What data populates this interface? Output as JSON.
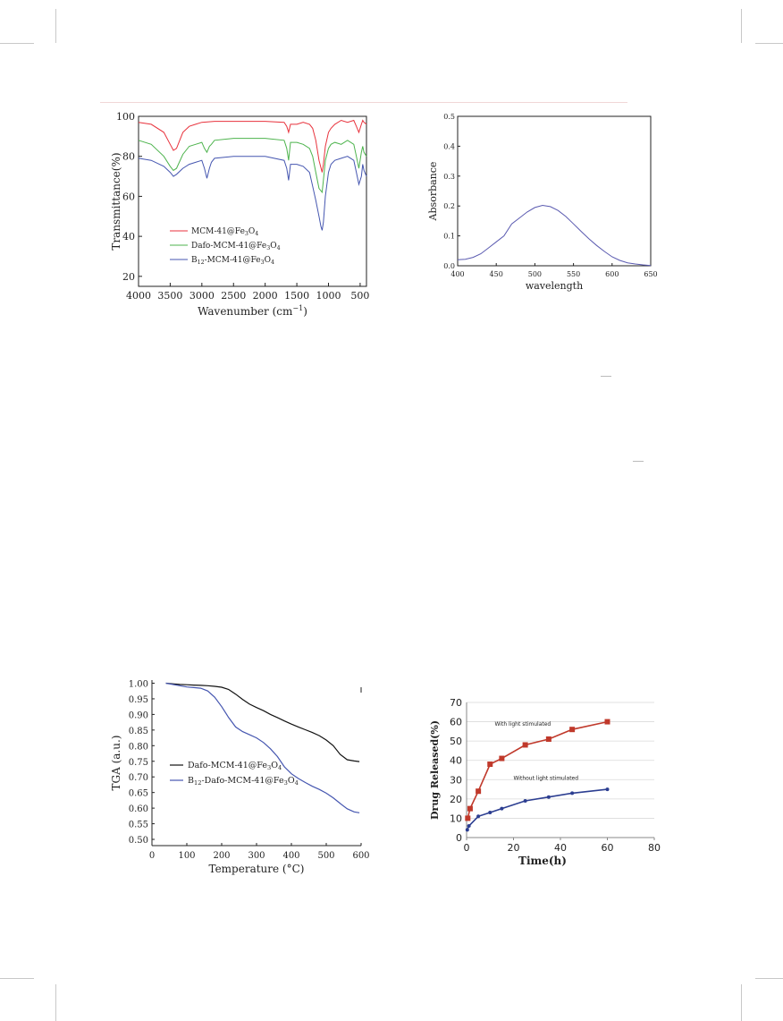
{
  "chart_data": [
    {
      "type": "line",
      "ylabel": "Transmittance(%)",
      "xlabel": "Wavenumber (cm",
      "xlabel_unit_sup": "−1",
      "xlim": [
        4000,
        400
      ],
      "ylim": [
        15,
        100
      ],
      "xticks": [
        4000,
        3500,
        3000,
        2500,
        2000,
        1500,
        1000,
        500
      ],
      "yticks": [
        20,
        40,
        60,
        80,
        100
      ],
      "legend_position": "bottom-left",
      "series": [
        {
          "name": "MCM-41@Fe",
          "sub1": "3",
          "mid": "O",
          "sub2": "4",
          "color": "#e8323c",
          "x": [
            4000,
            3800,
            3600,
            3500,
            3450,
            3400,
            3300,
            3200,
            3100,
            3000,
            2800,
            2500,
            2000,
            1700,
            1660,
            1630,
            1600,
            1500,
            1400,
            1300,
            1250,
            1200,
            1150,
            1100,
            1080,
            1050,
            1000,
            960,
            900,
            800,
            700,
            600,
            560,
            520,
            480,
            460,
            440,
            400
          ],
          "y": [
            97,
            96,
            92,
            86,
            83,
            84,
            92,
            95,
            96,
            97,
            97.5,
            97.5,
            97.5,
            97,
            95,
            92,
            96,
            96,
            97,
            96,
            94,
            88,
            78,
            72,
            76,
            85,
            92,
            94,
            96,
            98,
            97,
            98,
            95,
            92,
            96,
            98,
            97,
            96
          ]
        },
        {
          "name": "Dafo-MCM-41@Fe",
          "sub1": "3",
          "mid": "O",
          "sub2": "4",
          "color": "#4cb34c",
          "x": [
            4000,
            3800,
            3600,
            3500,
            3450,
            3400,
            3300,
            3200,
            3100,
            3000,
            2960,
            2920,
            2880,
            2850,
            2800,
            2500,
            2000,
            1700,
            1660,
            1630,
            1600,
            1500,
            1400,
            1300,
            1250,
            1200,
            1150,
            1100,
            1080,
            1050,
            1000,
            960,
            900,
            800,
            700,
            600,
            560,
            520,
            480,
            460,
            440,
            400
          ],
          "y": [
            88,
            86,
            80,
            75,
            73,
            74,
            81,
            85,
            86,
            87,
            84,
            82,
            85,
            86,
            88,
            89,
            89,
            88,
            84,
            78,
            87,
            87,
            86,
            84,
            80,
            72,
            64,
            62,
            68,
            78,
            84,
            86,
            87,
            86,
            88,
            86,
            80,
            74,
            82,
            85,
            82,
            80
          ]
        },
        {
          "name": "B",
          "sub0": "12",
          "name2": "-MCM-41@Fe",
          "sub1": "3",
          "mid": "O",
          "sub2": "4",
          "color": "#4556b0",
          "x": [
            4000,
            3800,
            3600,
            3500,
            3450,
            3400,
            3300,
            3200,
            3100,
            3000,
            2960,
            2920,
            2880,
            2850,
            2800,
            2500,
            2000,
            1700,
            1660,
            1630,
            1600,
            1500,
            1400,
            1300,
            1250,
            1200,
            1150,
            1120,
            1100,
            1080,
            1050,
            1000,
            960,
            900,
            800,
            700,
            600,
            560,
            520,
            480,
            460,
            440,
            400
          ],
          "y": [
            79,
            78,
            75,
            72,
            70,
            71,
            74,
            76,
            77,
            78,
            74,
            69,
            74,
            77,
            79,
            80,
            80,
            78,
            74,
            68,
            76,
            76,
            75,
            72,
            65,
            58,
            50,
            45,
            43,
            47,
            60,
            72,
            76,
            78,
            79,
            80,
            78,
            72,
            66,
            70,
            76,
            73,
            70
          ]
        }
      ]
    },
    {
      "type": "line",
      "ylabel": "Absorbance",
      "xlabel": "wavelength",
      "xlim": [
        400,
        650
      ],
      "ylim": [
        0.0,
        0.5
      ],
      "xticks": [
        400,
        450,
        500,
        550,
        600,
        650
      ],
      "yticks": [
        0.0,
        0.1,
        0.2,
        0.3,
        0.4,
        0.5
      ],
      "series": [
        {
          "color": "#5a5ab0",
          "x": [
            400,
            410,
            420,
            430,
            440,
            450,
            460,
            470,
            480,
            490,
            500,
            510,
            520,
            530,
            540,
            550,
            560,
            570,
            580,
            590,
            600,
            610,
            620,
            630,
            640,
            650
          ],
          "y": [
            0.02,
            0.022,
            0.028,
            0.04,
            0.06,
            0.08,
            0.1,
            0.14,
            0.16,
            0.18,
            0.195,
            0.202,
            0.198,
            0.185,
            0.165,
            0.14,
            0.115,
            0.09,
            0.068,
            0.048,
            0.03,
            0.018,
            0.01,
            0.006,
            0.003,
            0.001
          ]
        }
      ]
    },
    {
      "type": "line",
      "ylabel": "TGA (a.u.)",
      "xlabel": "Temperature (",
      "xlabel_unit": "°C)",
      "xlim": [
        0,
        600
      ],
      "ylim": [
        0.48,
        1.01
      ],
      "xticks": [
        0,
        100,
        200,
        300,
        400,
        500,
        600
      ],
      "yticks": [
        0.5,
        0.55,
        0.6,
        0.65,
        0.7,
        0.75,
        0.8,
        0.85,
        0.9,
        0.95,
        1.0
      ],
      "legend_position": "middle-left",
      "series": [
        {
          "name": "Dafo-MCM-41@Fe",
          "sub1": "3",
          "mid": "O",
          "sub2": "4",
          "color": "#111111",
          "x": [
            40,
            60,
            80,
            100,
            120,
            140,
            160,
            180,
            200,
            220,
            240,
            260,
            280,
            300,
            320,
            340,
            360,
            380,
            400,
            420,
            440,
            460,
            480,
            500,
            520,
            540,
            560,
            580,
            595
          ],
          "y": [
            1.0,
            0.998,
            0.996,
            0.995,
            0.994,
            0.993,
            0.992,
            0.99,
            0.987,
            0.98,
            0.965,
            0.948,
            0.933,
            0.922,
            0.912,
            0.9,
            0.89,
            0.879,
            0.869,
            0.86,
            0.851,
            0.842,
            0.832,
            0.818,
            0.8,
            0.772,
            0.755,
            0.751,
            0.749
          ]
        },
        {
          "name": "B",
          "sub0": "12",
          "name2": "-Dafo-MCM-41@Fe",
          "sub1": "3",
          "mid": "O",
          "sub2": "4",
          "color": "#4556b0",
          "x": [
            40,
            60,
            80,
            100,
            120,
            140,
            160,
            180,
            200,
            220,
            240,
            260,
            280,
            300,
            320,
            340,
            360,
            380,
            400,
            420,
            440,
            460,
            480,
            500,
            520,
            540,
            560,
            580,
            595
          ],
          "y": [
            1.0,
            0.996,
            0.992,
            0.988,
            0.986,
            0.984,
            0.975,
            0.955,
            0.925,
            0.89,
            0.86,
            0.845,
            0.835,
            0.825,
            0.81,
            0.79,
            0.765,
            0.732,
            0.71,
            0.695,
            0.682,
            0.67,
            0.66,
            0.648,
            0.633,
            0.615,
            0.598,
            0.588,
            0.585
          ]
        }
      ]
    },
    {
      "type": "line",
      "ylabel": "Drug Released(%)",
      "xlabel": "Time(h)",
      "xlim": [
        0,
        80
      ],
      "ylim": [
        0,
        70
      ],
      "xticks": [
        0,
        20,
        40,
        60,
        80
      ],
      "yticks": [
        0,
        10,
        20,
        30,
        40,
        50,
        60,
        70
      ],
      "grid": "horizontal",
      "series": [
        {
          "name": "With light stimulated",
          "color": "#c0392b",
          "marker": "square",
          "x": [
            0.5,
            1.5,
            5,
            10,
            15,
            25,
            35,
            45,
            60
          ],
          "y": [
            10,
            15,
            24,
            38,
            41,
            48,
            51,
            56,
            60
          ]
        },
        {
          "name": "Without light stimulated",
          "color": "#2c3e91",
          "marker": "diamond",
          "x": [
            0.3,
            1,
            5,
            10,
            15,
            25,
            35,
            45,
            60
          ],
          "y": [
            4,
            6,
            11,
            13,
            15,
            19,
            21,
            23,
            25
          ]
        }
      ]
    }
  ]
}
